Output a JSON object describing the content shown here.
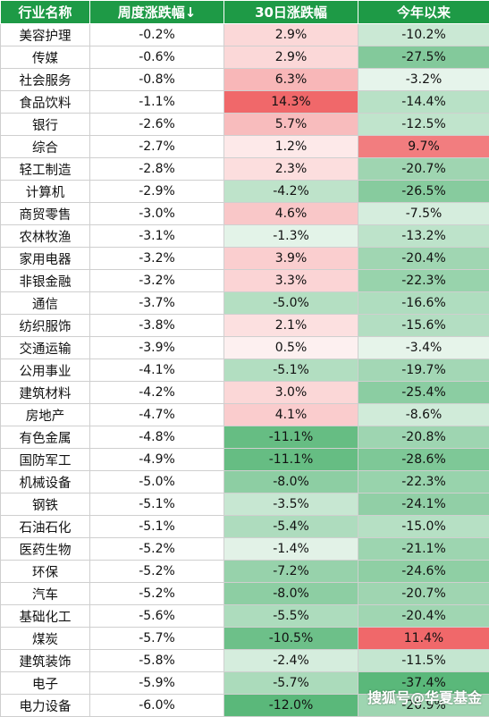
{
  "table": {
    "headers": [
      "行业名称",
      "周度涨跌幅↓",
      "30日涨跌幅",
      "今年以来"
    ],
    "rows": [
      [
        "美容护理",
        "-0.2%",
        "2.9%",
        "-10.2%"
      ],
      [
        "传媒",
        "-0.6%",
        "2.9%",
        "-27.5%"
      ],
      [
        "社会服务",
        "-0.8%",
        "6.3%",
        "-3.2%"
      ],
      [
        "食品饮料",
        "-1.1%",
        "14.3%",
        "-14.4%"
      ],
      [
        "银行",
        "-2.6%",
        "5.7%",
        "-12.5%"
      ],
      [
        "综合",
        "-2.7%",
        "1.2%",
        "9.7%"
      ],
      [
        "轻工制造",
        "-2.8%",
        "2.3%",
        "-20.7%"
      ],
      [
        "计算机",
        "-2.9%",
        "-4.2%",
        "-26.5%"
      ],
      [
        "商贸零售",
        "-3.0%",
        "4.6%",
        "-7.5%"
      ],
      [
        "农林牧渔",
        "-3.1%",
        "-1.3%",
        "-13.2%"
      ],
      [
        "家用电器",
        "-3.2%",
        "3.9%",
        "-20.4%"
      ],
      [
        "非银金融",
        "-3.2%",
        "3.3%",
        "-22.3%"
      ],
      [
        "通信",
        "-3.7%",
        "-5.0%",
        "-16.6%"
      ],
      [
        "纺织服饰",
        "-3.8%",
        "2.1%",
        "-15.6%"
      ],
      [
        "交通运输",
        "-3.9%",
        "0.5%",
        "-3.4%"
      ],
      [
        "公用事业",
        "-4.1%",
        "-5.1%",
        "-19.7%"
      ],
      [
        "建筑材料",
        "-4.2%",
        "3.0%",
        "-25.4%"
      ],
      [
        "房地产",
        "-4.7%",
        "4.1%",
        "-8.6%"
      ],
      [
        "有色金属",
        "-4.8%",
        "-11.1%",
        "-20.8%"
      ],
      [
        "国防军工",
        "-4.9%",
        "-11.1%",
        "-28.6%"
      ],
      [
        "机械设备",
        "-5.0%",
        "-8.0%",
        "-22.3%"
      ],
      [
        "钢铁",
        "-5.1%",
        "-3.5%",
        "-24.1%"
      ],
      [
        "石油石化",
        "-5.1%",
        "-5.4%",
        "-15.0%"
      ],
      [
        "医药生物",
        "-5.2%",
        "-1.4%",
        "-21.1%"
      ],
      [
        "环保",
        "-5.2%",
        "-7.2%",
        "-24.6%"
      ],
      [
        "汽车",
        "-5.2%",
        "-8.0%",
        "-20.7%"
      ],
      [
        "基础化工",
        "-5.6%",
        "-5.5%",
        "-20.4%"
      ],
      [
        "煤炭",
        "-5.7%",
        "-10.5%",
        "11.4%"
      ],
      [
        "建筑装饰",
        "-5.8%",
        "-2.4%",
        "-11.5%"
      ],
      [
        "电子",
        "-5.9%",
        "-5.7%",
        "-37.4%"
      ],
      [
        "电力设备",
        "-6.0%",
        "-12.0%",
        "-20.9%"
      ]
    ]
  },
  "colors": {
    "header_bg": "#1e9a46",
    "positive": "#f0686a",
    "negative": "#5ab87a"
  },
  "watermark": "搜狐号@华夏基金"
}
